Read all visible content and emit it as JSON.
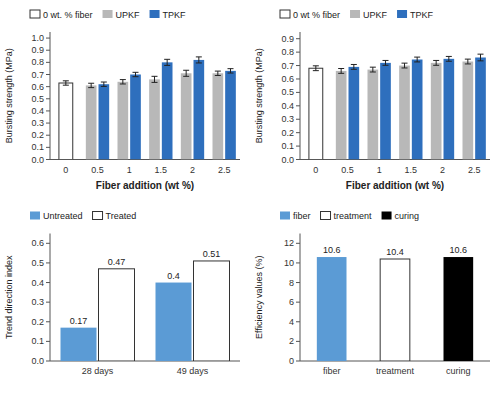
{
  "chart_data": [
    {
      "type": "bar",
      "categories": [
        "0",
        "0.5",
        "1",
        "1.5",
        "2",
        "2.5"
      ],
      "xlabel": "Fiber addition (wt %)",
      "ylabel": "Bursting strength (MPa)",
      "ylim": [
        0,
        1.05
      ],
      "yticks": [
        {
          "value": 0,
          "label": "0.0"
        },
        0.1,
        0.2,
        0.3,
        0.4,
        0.5,
        0.6,
        0.7,
        0.8,
        0.9,
        {
          "value": 1.0,
          "label": "1.0"
        }
      ],
      "grid": false,
      "legend": "top",
      "series": [
        {
          "name": "0 wt. % fiber",
          "color": "white",
          "values": [
            0.63,
            null,
            null,
            null,
            null,
            null
          ],
          "errors": [
            0.018,
            null,
            null,
            null,
            null,
            null
          ]
        },
        {
          "name": "UPKF",
          "color": "#b8b8b8",
          "values": [
            null,
            0.61,
            0.64,
            0.66,
            0.71,
            0.71
          ],
          "errors": [
            null,
            0.018,
            0.018,
            0.025,
            0.025,
            0.018
          ]
        },
        {
          "name": "TPKF",
          "color": "#2e6fbd",
          "values": [
            null,
            0.62,
            0.7,
            0.8,
            0.82,
            0.73
          ],
          "errors": [
            null,
            0.018,
            0.018,
            0.025,
            0.025,
            0.018
          ]
        }
      ]
    },
    {
      "type": "bar",
      "categories": [
        "0",
        "0.5",
        "1",
        "1.5",
        "2",
        "2.5"
      ],
      "xlabel": "Fiber addition (wt %)",
      "ylabel": "Bursting strength (MPa)",
      "ylim": [
        0,
        0.95
      ],
      "yticks": [
        {
          "value": 0,
          "label": "0.0"
        },
        0.1,
        0.2,
        0.3,
        0.4,
        0.5,
        0.6,
        0.7,
        0.8,
        0.9
      ],
      "grid": false,
      "legend": "top",
      "series": [
        {
          "name": "0 wt % fiber",
          "color": "white",
          "values": [
            0.68,
            null,
            null,
            null,
            null,
            null
          ],
          "errors": [
            0.018,
            null,
            null,
            null,
            null,
            null
          ]
        },
        {
          "name": "UPKF",
          "color": "#b8b8b8",
          "values": [
            null,
            0.66,
            0.67,
            0.7,
            0.72,
            0.73
          ],
          "errors": [
            null,
            0.018,
            0.018,
            0.018,
            0.018,
            0.018
          ]
        },
        {
          "name": "TPKF",
          "color": "#2e6fbd",
          "values": [
            null,
            0.69,
            0.72,
            0.745,
            0.75,
            0.76
          ],
          "errors": [
            null,
            0.018,
            0.018,
            0.018,
            0.018,
            0.025
          ]
        }
      ]
    },
    {
      "type": "bar",
      "categories": [
        "28 days",
        "49 days"
      ],
      "ylabel": "Trend direction index",
      "ylim": [
        0,
        0.65
      ],
      "yticks": [
        {
          "value": 0,
          "label": "0.0"
        },
        0.1,
        0.2,
        0.3,
        0.4,
        0.5,
        0.6
      ],
      "grid": false,
      "legend": "top",
      "data_labels": true,
      "series": [
        {
          "name": "Untreated",
          "color": "#5b9bd5",
          "values": [
            0.17,
            0.4
          ]
        },
        {
          "name": "Treated",
          "color": "white",
          "values": [
            0.47,
            0.51
          ]
        }
      ]
    },
    {
      "type": "bar",
      "categories": [
        "fiber",
        "treatment",
        "curing"
      ],
      "ylabel": "Efficiency values (%)",
      "ylim": [
        0,
        13
      ],
      "yticks": [
        0,
        2,
        4,
        6,
        8,
        10,
        12
      ],
      "grid": false,
      "legend": "top",
      "data_labels": true,
      "series": [
        {
          "name": "fiber",
          "color": "#5b9bd5",
          "values": [
            10.6,
            null,
            null
          ]
        },
        {
          "name": "treatment",
          "color": "white",
          "values": [
            null,
            10.4,
            null
          ]
        },
        {
          "name": "curing",
          "color": "black",
          "values": [
            null,
            null,
            10.6
          ]
        }
      ]
    }
  ]
}
